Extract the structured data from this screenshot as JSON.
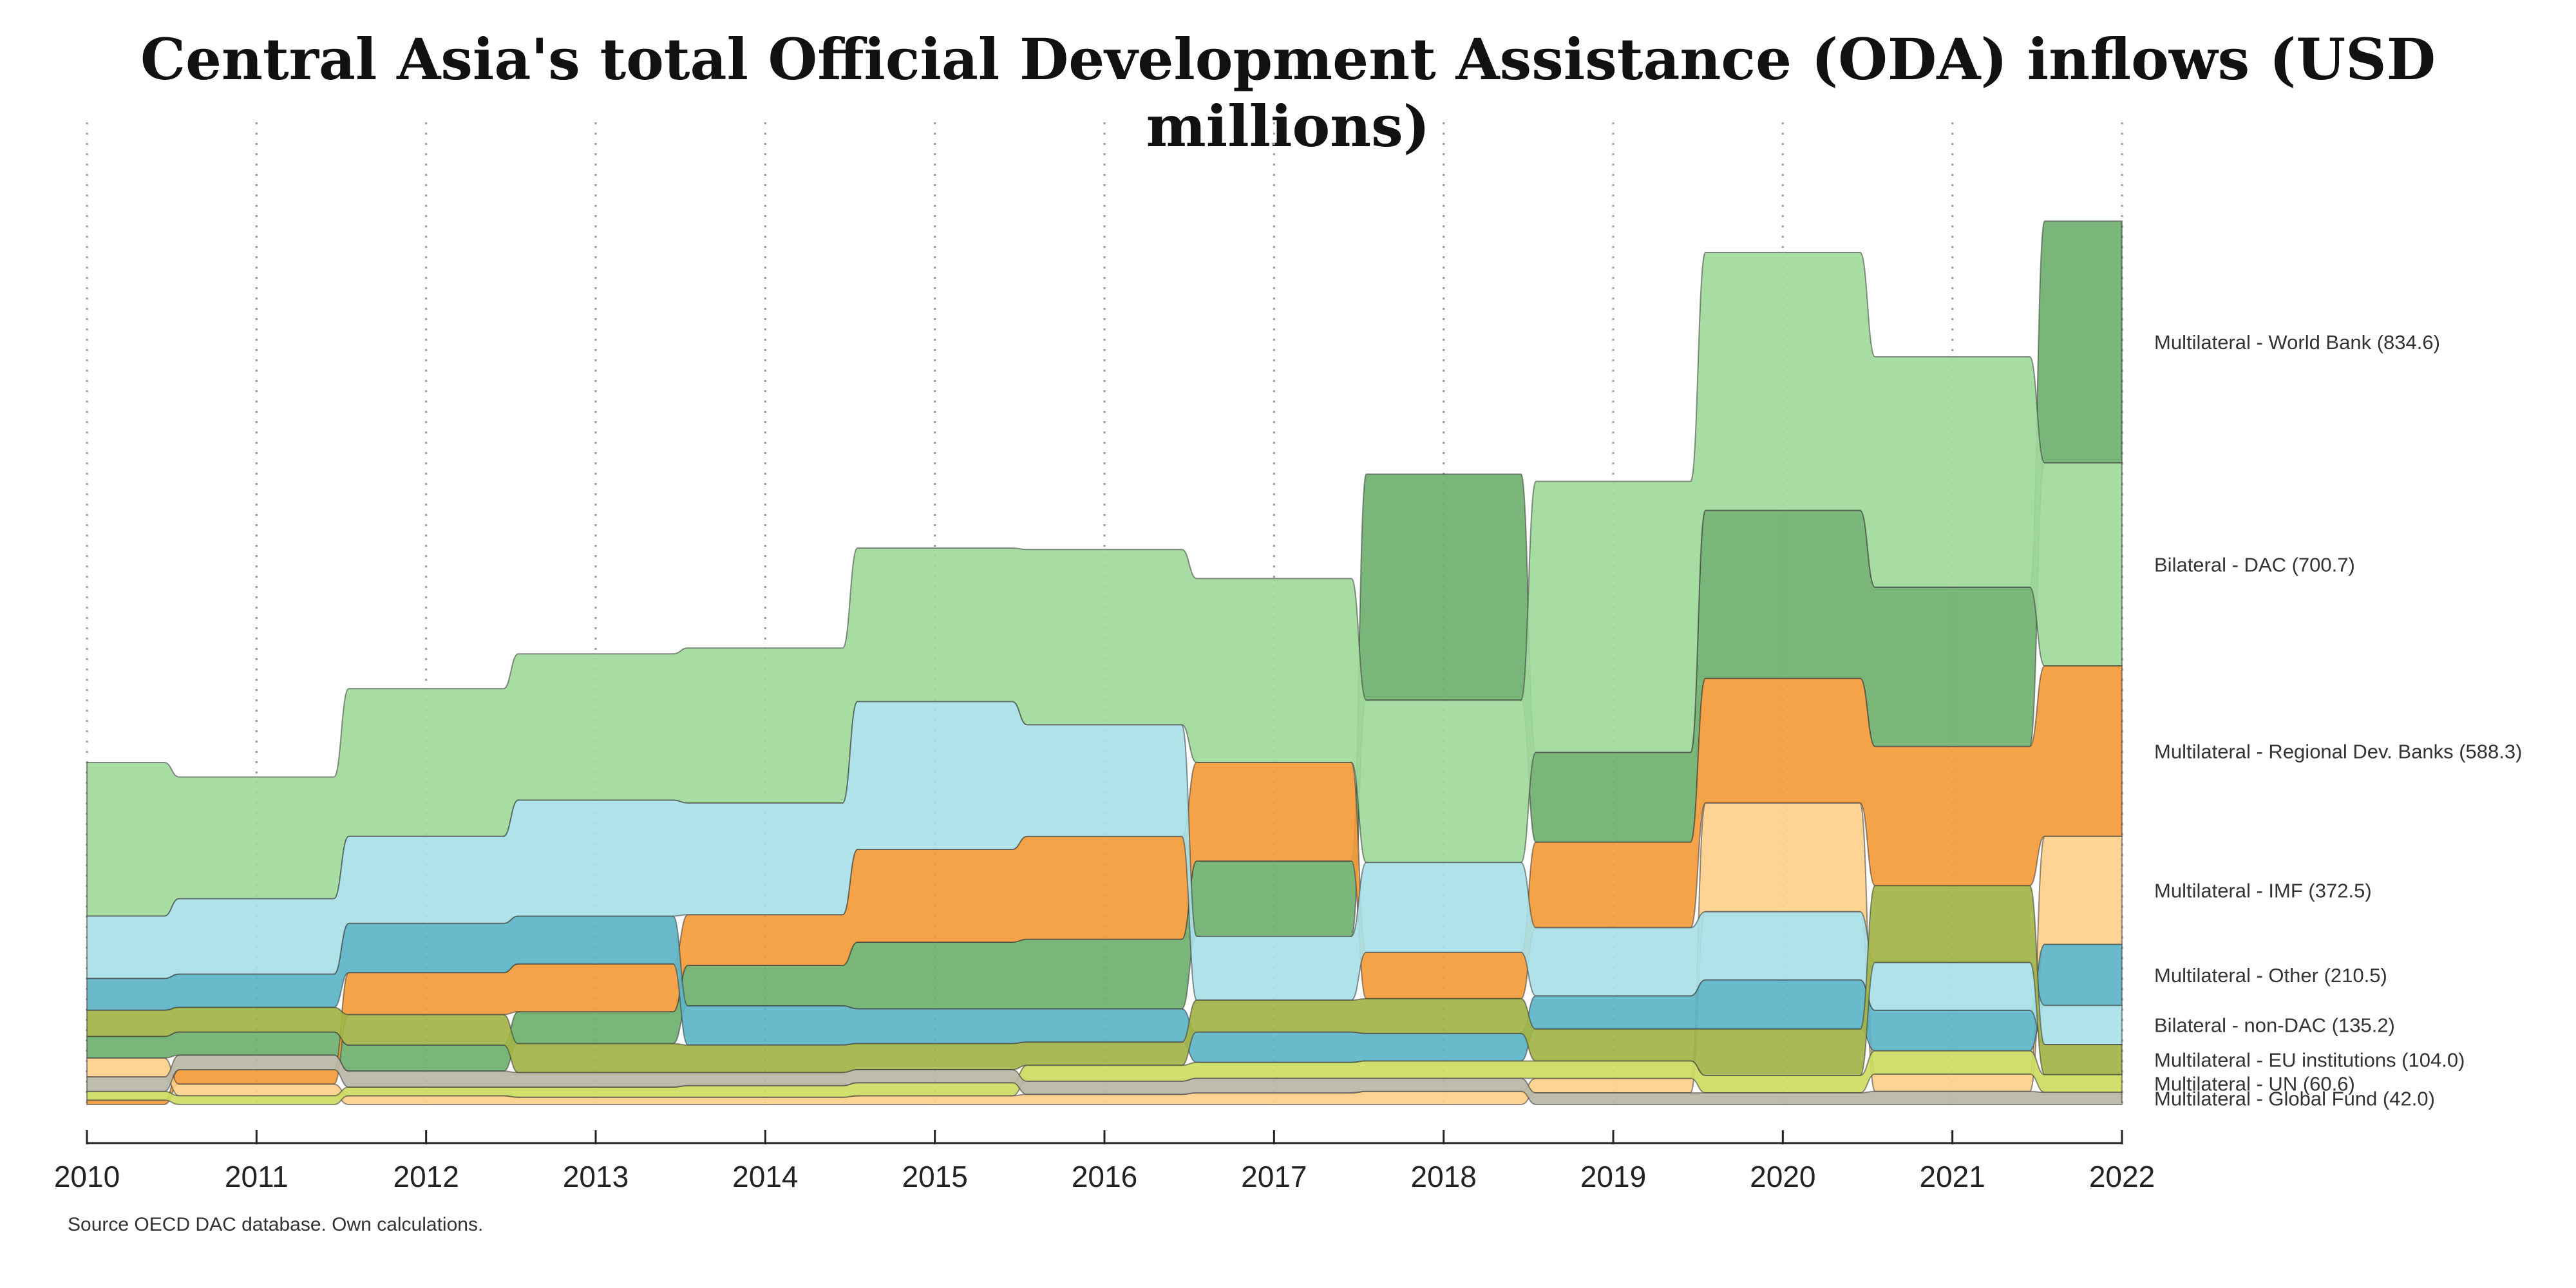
{
  "chart_data": {
    "type": "area",
    "title": "Central Asia's total Official Development Assistance (ODA) inflows (USD millions)",
    "source": "Source OECD DAC database. Own calculations.",
    "x": [
      2010,
      2011,
      2012,
      2013,
      2014,
      2015,
      2016,
      2017,
      2018,
      2019,
      2020,
      2021,
      2022
    ],
    "ylim": [
      0,
      3300
    ],
    "grid": "vertical-dotted",
    "legend": "right-inline",
    "series": [
      {
        "name": "Multilateral - World Bank",
        "label": "Multilateral - World Bank (834.6)",
        "color": "#6fb06f",
        "values": [
          75,
          80,
          90,
          110,
          140,
          230,
          240,
          260,
          780,
          310,
          580,
          550,
          834.6
        ]
      },
      {
        "name": "Bilateral - DAC",
        "label": "Bilateral - DAC (700.7)",
        "color": "#9fd99a",
        "values": [
          530,
          420,
          510,
          505,
          535,
          530,
          605,
          635,
          560,
          935,
          890,
          795,
          700.7
        ]
      },
      {
        "name": "Multilateral - Regional Dev. Banks",
        "label": "Multilateral - Regional Dev. Banks (588.3)",
        "color": "#f39b38",
        "values": [
          15,
          50,
          145,
          165,
          175,
          320,
          355,
          340,
          160,
          295,
          430,
          480,
          588.3
        ]
      },
      {
        "name": "Multilateral - IMF",
        "label": "Multilateral - IMF (372.5)",
        "color": "#fdd08a",
        "values": [
          65,
          40,
          30,
          25,
          25,
          30,
          35,
          40,
          45,
          50,
          375,
          60,
          372.5
        ]
      },
      {
        "name": "Multilateral - Other",
        "label": "Multilateral - Other (210.5)",
        "color": "#5cb4c7",
        "values": [
          110,
          115,
          170,
          165,
          135,
          120,
          115,
          105,
          95,
          115,
          170,
          140,
          210.5
        ]
      },
      {
        "name": "Bilateral - non-DAC",
        "label": "Bilateral - non-DAC (135.2)",
        "color": "#a9dfe8",
        "values": [
          215,
          260,
          300,
          400,
          385,
          510,
          385,
          220,
          310,
          235,
          235,
          165,
          135.2
        ]
      },
      {
        "name": "Multilateral - EU institutions",
        "label": "Multilateral - EU institutions (104.0)",
        "color": "#a2b347",
        "values": [
          90,
          85,
          105,
          100,
          95,
          90,
          80,
          110,
          120,
          110,
          160,
          265,
          104.0
        ]
      },
      {
        "name": "Multilateral - UN",
        "label": "Multilateral - UN (60.6)",
        "color": "#cddc63",
        "values": [
          30,
          30,
          30,
          35,
          40,
          45,
          55,
          55,
          60,
          60,
          60,
          80,
          60.6
        ]
      },
      {
        "name": "Multilateral - Global Fund",
        "label": "Multilateral - Global Fund (42.0)",
        "color": "#b9b7a6",
        "values": [
          50,
          50,
          55,
          50,
          45,
          45,
          45,
          50,
          45,
          40,
          40,
          45,
          42.0
        ]
      }
    ]
  }
}
